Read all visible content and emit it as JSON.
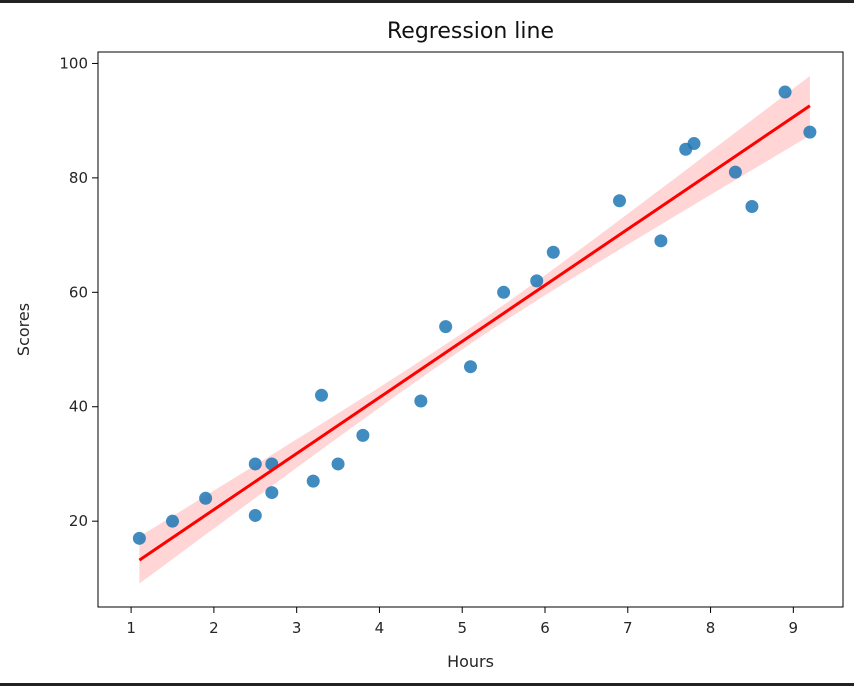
{
  "colors": {
    "points": "#1f77b4",
    "line": "#ff0000",
    "band": "#ffb3b3"
  },
  "chart_data": {
    "type": "scatter",
    "title": "Regression line",
    "xlabel": "Hours",
    "ylabel": "Scores",
    "xlim": [
      0.6,
      9.6
    ],
    "ylim": [
      5,
      102
    ],
    "xticks": [
      1,
      2,
      3,
      4,
      5,
      6,
      7,
      8,
      9
    ],
    "yticks": [
      20,
      40,
      60,
      80,
      100
    ],
    "grid": false,
    "series": [
      {
        "kind": "scatter",
        "x": [
          2.5,
          5.1,
          3.2,
          8.5,
          3.5,
          1.5,
          9.2,
          5.5,
          8.3,
          2.7,
          7.7,
          5.9,
          4.5,
          3.3,
          1.1,
          8.9,
          2.5,
          1.9,
          6.1,
          7.4,
          2.7,
          4.8,
          3.8,
          6.9,
          7.8
        ],
        "y": [
          21,
          47,
          27,
          75,
          30,
          20,
          88,
          60,
          81,
          25,
          85,
          62,
          41,
          42,
          17,
          95,
          30,
          24,
          67,
          69,
          30,
          54,
          35,
          76,
          86
        ]
      },
      {
        "kind": "regression",
        "x": [
          1.1,
          9.2
        ],
        "y": [
          13.2,
          92.6
        ],
        "ci_lower_at_x": [
          9.1,
          87.4
        ],
        "ci_upper_at_x": [
          17.3,
          97.8
        ]
      }
    ]
  }
}
